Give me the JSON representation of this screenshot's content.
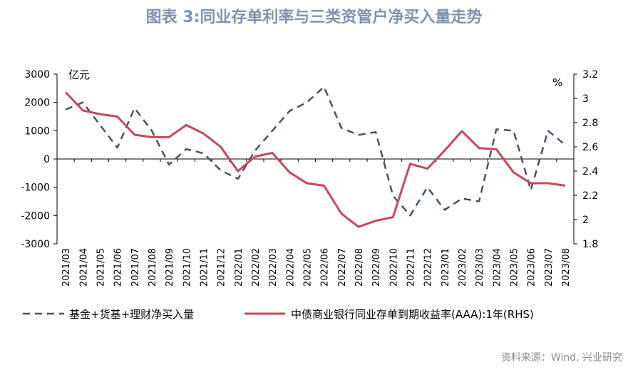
{
  "title": "图表 3:同业存单利率与三类资管户净买入量走势",
  "source": "资料来源：Wind, 兴业研究",
  "chart_data": {
    "type": "line",
    "categories": [
      "2021/03",
      "2021/04",
      "2021/05",
      "2021/06",
      "2021/07",
      "2021/08",
      "2021/09",
      "2021/10",
      "2021/11",
      "2021/12",
      "2022/01",
      "2022/02",
      "2022/03",
      "2022/04",
      "2022/05",
      "2022/06",
      "2022/07",
      "2022/08",
      "2022/09",
      "2022/10",
      "2022/11",
      "2022/12",
      "2023/01",
      "2023/02",
      "2023/03",
      "2023/04",
      "2023/05",
      "2023/06",
      "2023/07",
      "2023/08"
    ],
    "left_unit": "亿元",
    "right_unit": "%",
    "y_left": {
      "min": -3000,
      "max": 3000,
      "step": 1000,
      "ticks": [
        "3000",
        "2000",
        "1000",
        "0",
        "-1000",
        "-2000",
        "-3000"
      ]
    },
    "y_right": {
      "min": 1.8,
      "max": 3.2,
      "step": 0.2,
      "ticks": [
        "3.2",
        "3",
        "2.8",
        "2.6",
        "2.4",
        "2.2",
        "2",
        "1.8"
      ]
    },
    "series": [
      {
        "name": "基金+货基+理财净买入量",
        "axis": "left",
        "style": "dashed",
        "color": "#44546a",
        "values": [
          1750,
          2000,
          1200,
          400,
          1800,
          1000,
          -200,
          350,
          200,
          -400,
          -700,
          300,
          1000,
          1700,
          2000,
          2550,
          1100,
          850,
          950,
          -1300,
          -2000,
          -1000,
          -1800,
          -1400,
          -1500,
          1050,
          1000,
          -1100,
          1000,
          500
        ]
      },
      {
        "name": "中债商业银行同业存单到期收益率(AAA):1年(RHS)",
        "axis": "right",
        "style": "solid",
        "color": "#c9475a",
        "values": [
          3.05,
          2.9,
          2.87,
          2.85,
          2.7,
          2.68,
          2.68,
          2.78,
          2.71,
          2.6,
          2.4,
          2.52,
          2.55,
          2.39,
          2.3,
          2.28,
          2.05,
          1.94,
          1.99,
          2.02,
          2.46,
          2.42,
          2.57,
          2.73,
          2.59,
          2.58,
          2.39,
          2.3,
          2.3,
          2.28
        ]
      }
    ]
  }
}
